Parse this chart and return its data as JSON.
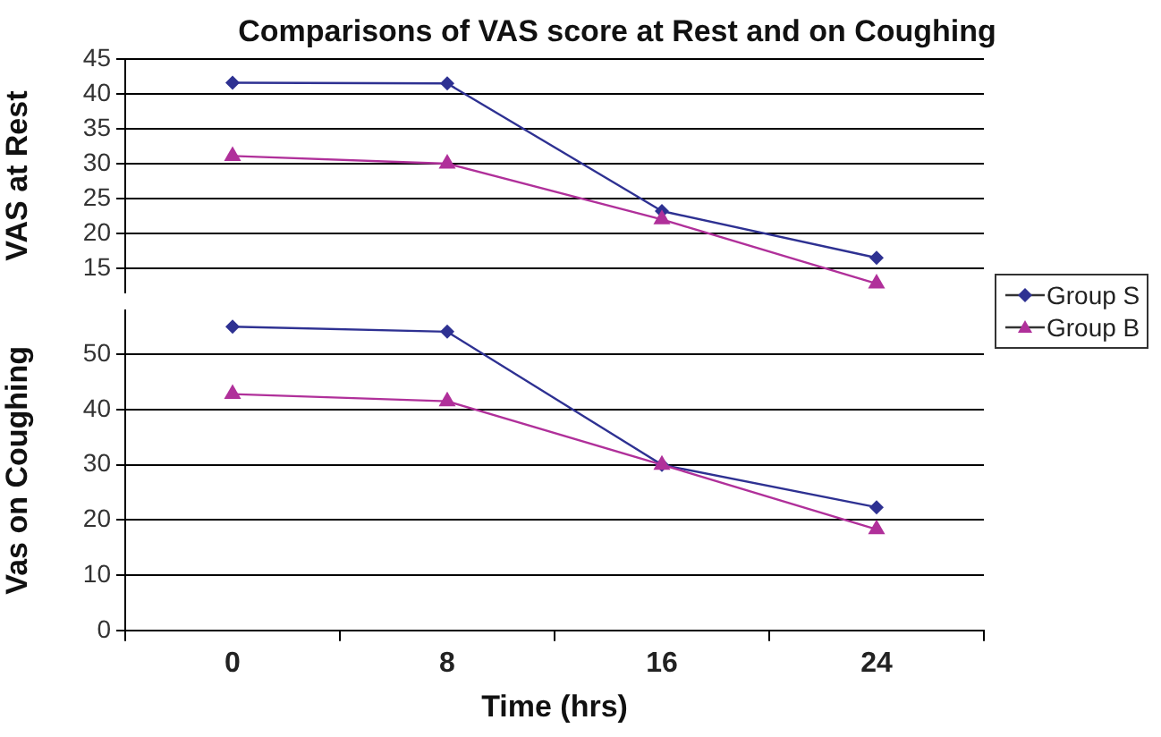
{
  "chart_data": [
    {
      "type": "line",
      "title": "Comparisons of VAS score at Rest and on Coughing",
      "ylabel": "VAS at Rest",
      "categories": [
        "0",
        "8",
        "16",
        "24"
      ],
      "series": [
        {
          "name": "Group S",
          "color": "#2e3192",
          "values": [
            41.6,
            41.5,
            23.2,
            16.5
          ],
          "marker": "diamond"
        },
        {
          "name": "Group B",
          "color": "#b0309a",
          "values": [
            31.1,
            30,
            22,
            12.8
          ],
          "marker": "triangle"
        }
      ],
      "ylim": [
        11.5,
        45
      ],
      "yticks": [
        15,
        20,
        25,
        30,
        35,
        40,
        45
      ],
      "grid": "y",
      "legend": "right",
      "tick_labels": "y",
      "line_style": "solid"
    },
    {
      "type": "line",
      "xlabel": "Time (hrs)",
      "ylabel": "Vas on Coughing",
      "categories": [
        "0",
        "8",
        "16",
        "24"
      ],
      "series": [
        {
          "name": "Group S",
          "color": "#2e3192",
          "values": [
            55,
            54.1,
            30,
            22.3
          ],
          "marker": "diamond"
        },
        {
          "name": "Group B",
          "color": "#b0309a",
          "values": [
            42.8,
            41.5,
            30,
            18.3
          ],
          "marker": "triangle"
        }
      ],
      "ylim": [
        0,
        58
      ],
      "yticks": [
        0,
        10,
        20,
        30,
        40,
        50
      ],
      "grid": "y",
      "line_style": "solid"
    }
  ]
}
